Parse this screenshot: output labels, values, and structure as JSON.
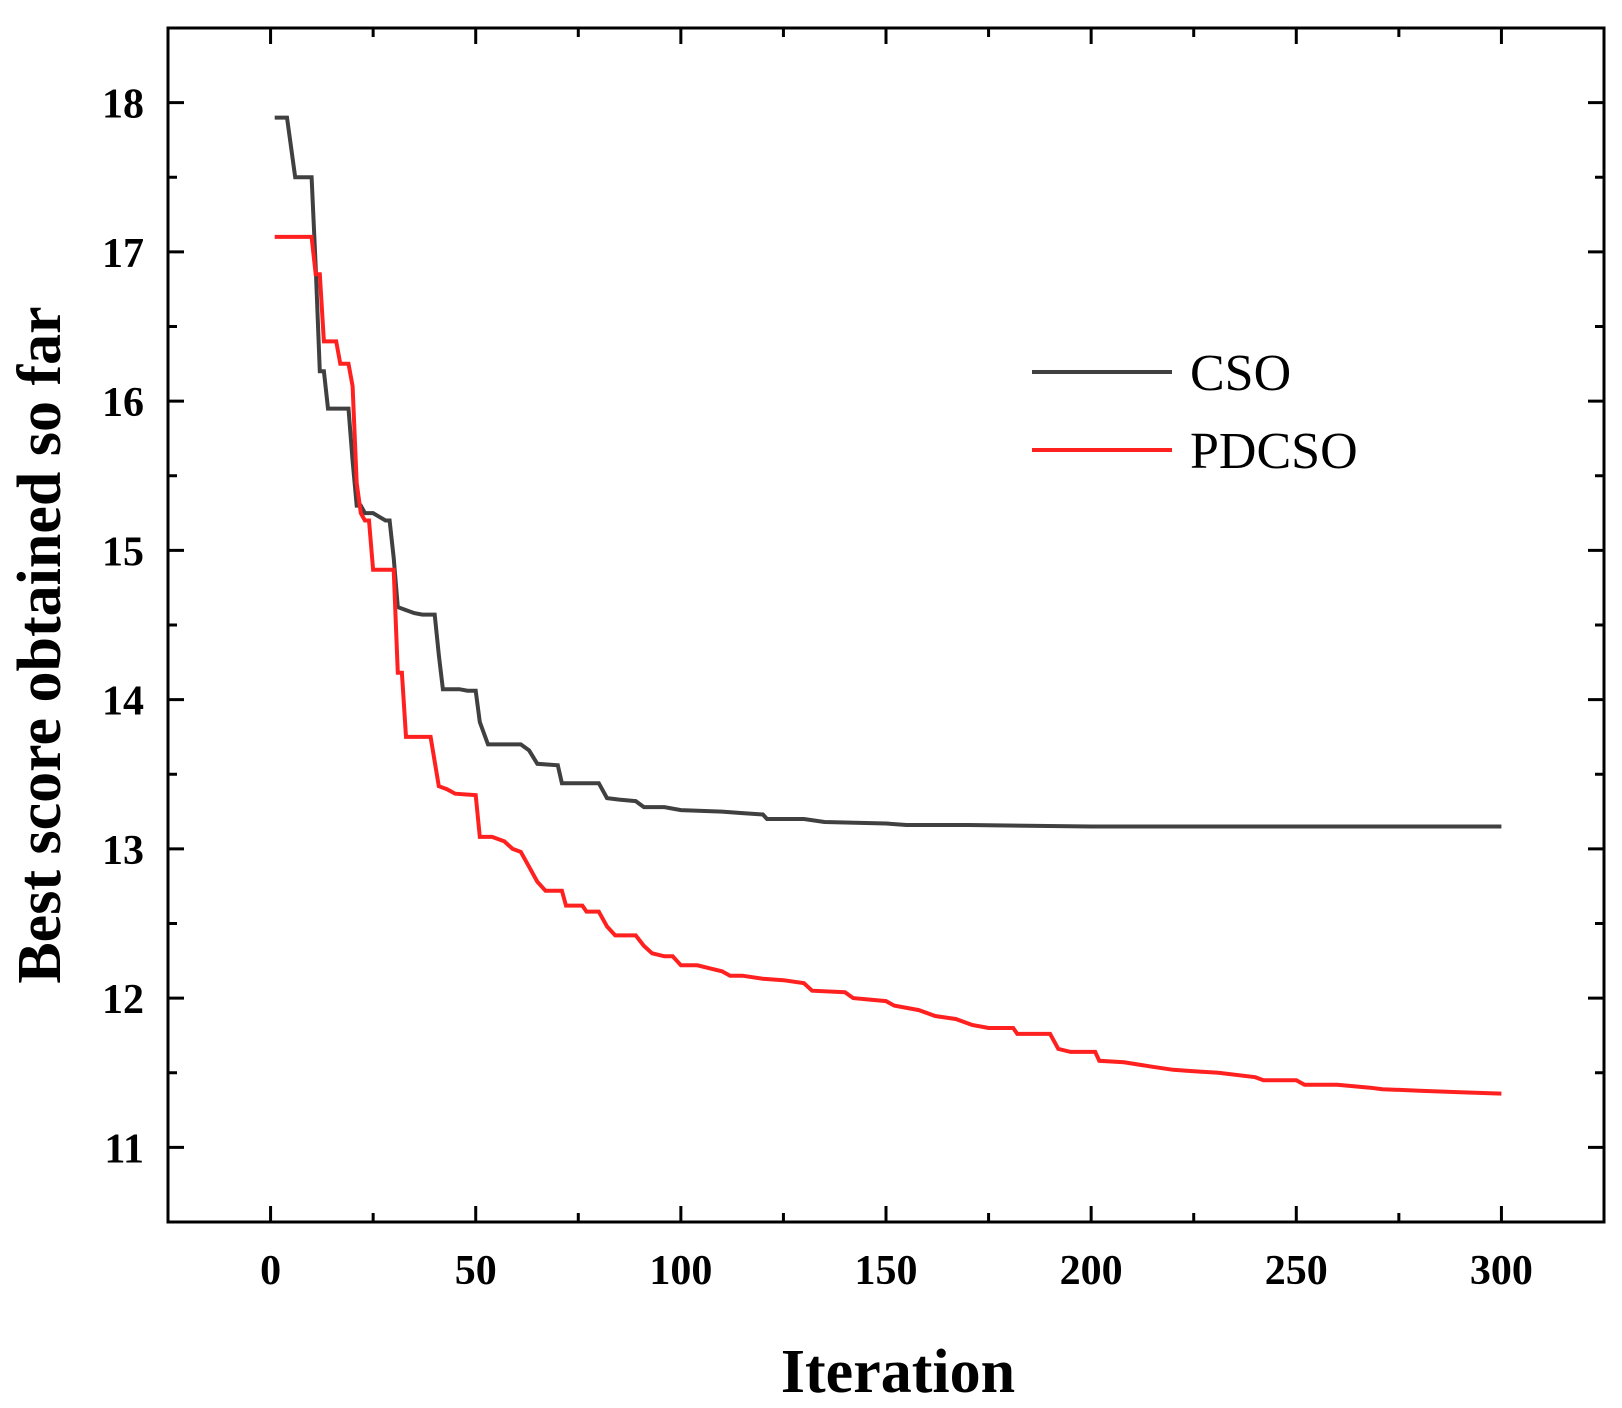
{
  "chart_data": {
    "type": "line",
    "title": "",
    "xlabel": "Iteration",
    "ylabel": "Best score obtained so far",
    "xlim": [
      -25,
      325
    ],
    "ylim": [
      10.5,
      18.5
    ],
    "xticks": [
      0,
      50,
      100,
      150,
      200,
      250,
      300
    ],
    "yticks": [
      11,
      12,
      13,
      14,
      15,
      16,
      17,
      18
    ],
    "x_minor_step": 25,
    "y_minor_step": 0.5,
    "grid": false,
    "legend_position": "upper-right",
    "series": [
      {
        "name": "CSO",
        "color": "#404040",
        "points": [
          [
            1,
            17.9
          ],
          [
            4,
            17.9
          ],
          [
            6,
            17.5
          ],
          [
            10,
            17.5
          ],
          [
            11,
            16.9
          ],
          [
            12,
            16.2
          ],
          [
            13,
            16.2
          ],
          [
            14,
            15.95
          ],
          [
            19,
            15.95
          ],
          [
            20,
            15.6
          ],
          [
            21,
            15.3
          ],
          [
            22,
            15.3
          ],
          [
            23,
            15.25
          ],
          [
            25,
            15.25
          ],
          [
            28,
            15.2
          ],
          [
            29,
            15.2
          ],
          [
            30,
            14.95
          ],
          [
            31,
            14.62
          ],
          [
            33,
            14.6
          ],
          [
            35,
            14.58
          ],
          [
            37,
            14.57
          ],
          [
            40,
            14.57
          ],
          [
            41,
            14.3
          ],
          [
            42,
            14.07
          ],
          [
            46,
            14.07
          ],
          [
            48,
            14.06
          ],
          [
            50,
            14.06
          ],
          [
            51,
            13.85
          ],
          [
            53,
            13.7
          ],
          [
            61,
            13.7
          ],
          [
            63,
            13.66
          ],
          [
            65,
            13.57
          ],
          [
            70,
            13.56
          ],
          [
            71,
            13.44
          ],
          [
            80,
            13.44
          ],
          [
            82,
            13.34
          ],
          [
            85,
            13.33
          ],
          [
            89,
            13.32
          ],
          [
            91,
            13.28
          ],
          [
            96,
            13.28
          ],
          [
            100,
            13.26
          ],
          [
            110,
            13.25
          ],
          [
            115,
            13.24
          ],
          [
            120,
            13.23
          ],
          [
            121,
            13.2
          ],
          [
            130,
            13.2
          ],
          [
            135,
            13.18
          ],
          [
            150,
            13.17
          ],
          [
            155,
            13.16
          ],
          [
            170,
            13.16
          ],
          [
            200,
            13.15
          ],
          [
            220,
            13.15
          ],
          [
            260,
            13.15
          ],
          [
            300,
            13.15
          ]
        ]
      },
      {
        "name": "PDCSO",
        "color": "#ff2020",
        "points": [
          [
            1,
            17.1
          ],
          [
            9,
            17.1
          ],
          [
            10,
            17.1
          ],
          [
            11,
            16.85
          ],
          [
            12,
            16.85
          ],
          [
            13,
            16.4
          ],
          [
            16,
            16.4
          ],
          [
            17,
            16.25
          ],
          [
            19,
            16.25
          ],
          [
            20,
            16.1
          ],
          [
            21,
            15.45
          ],
          [
            22,
            15.25
          ],
          [
            23,
            15.2
          ],
          [
            24,
            15.2
          ],
          [
            25,
            14.87
          ],
          [
            30,
            14.87
          ],
          [
            31,
            14.18
          ],
          [
            32,
            14.18
          ],
          [
            33,
            13.75
          ],
          [
            39,
            13.75
          ],
          [
            41,
            13.42
          ],
          [
            43,
            13.4
          ],
          [
            45,
            13.37
          ],
          [
            50,
            13.36
          ],
          [
            51,
            13.08
          ],
          [
            54,
            13.08
          ],
          [
            57,
            13.05
          ],
          [
            59,
            13.0
          ],
          [
            61,
            12.98
          ],
          [
            63,
            12.88
          ],
          [
            65,
            12.78
          ],
          [
            67,
            12.72
          ],
          [
            71,
            12.72
          ],
          [
            72,
            12.62
          ],
          [
            76,
            12.62
          ],
          [
            77,
            12.58
          ],
          [
            80,
            12.58
          ],
          [
            82,
            12.48
          ],
          [
            84,
            12.42
          ],
          [
            89,
            12.42
          ],
          [
            91,
            12.35
          ],
          [
            93,
            12.3
          ],
          [
            96,
            12.28
          ],
          [
            98,
            12.28
          ],
          [
            100,
            12.22
          ],
          [
            104,
            12.22
          ],
          [
            107,
            12.2
          ],
          [
            110,
            12.18
          ],
          [
            112,
            12.15
          ],
          [
            115,
            12.15
          ],
          [
            120,
            12.13
          ],
          [
            125,
            12.12
          ],
          [
            130,
            12.1
          ],
          [
            132,
            12.05
          ],
          [
            140,
            12.04
          ],
          [
            142,
            12.0
          ],
          [
            150,
            11.98
          ],
          [
            152,
            11.95
          ],
          [
            158,
            11.92
          ],
          [
            162,
            11.88
          ],
          [
            167,
            11.86
          ],
          [
            171,
            11.82
          ],
          [
            175,
            11.8
          ],
          [
            181,
            11.8
          ],
          [
            182,
            11.76
          ],
          [
            190,
            11.76
          ],
          [
            192,
            11.66
          ],
          [
            195,
            11.64
          ],
          [
            201,
            11.64
          ],
          [
            202,
            11.58
          ],
          [
            208,
            11.57
          ],
          [
            215,
            11.54
          ],
          [
            220,
            11.52
          ],
          [
            225,
            11.51
          ],
          [
            231,
            11.5
          ],
          [
            240,
            11.47
          ],
          [
            242,
            11.45
          ],
          [
            250,
            11.45
          ],
          [
            252,
            11.42
          ],
          [
            260,
            11.42
          ],
          [
            268,
            11.4
          ],
          [
            271,
            11.39
          ],
          [
            280,
            11.38
          ],
          [
            290,
            11.37
          ],
          [
            300,
            11.36
          ]
        ]
      }
    ]
  }
}
